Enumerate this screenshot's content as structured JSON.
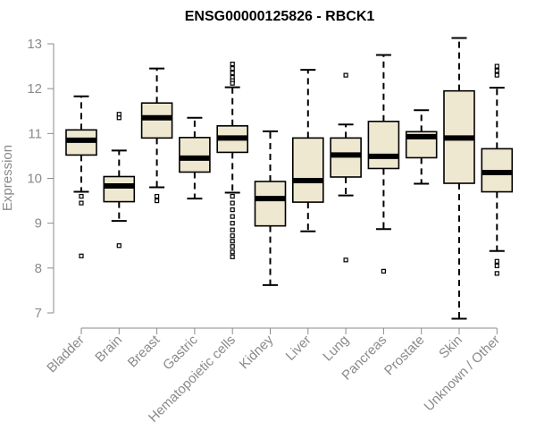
{
  "chart_data": {
    "type": "boxplot",
    "title": "ENSG00000125826 - RBCK1",
    "xlabel": "",
    "ylabel": "Expression",
    "ylim": [
      6.8,
      13.2
    ],
    "yticks": [
      7,
      8,
      9,
      10,
      11,
      12,
      13
    ],
    "categories": [
      "Bladder",
      "Brain",
      "Breast",
      "Gastric",
      "Hematopoietic cells",
      "Kidney",
      "Liver",
      "Lung",
      "Pancreas",
      "Prostate",
      "Skin",
      "Unknown / Other"
    ],
    "boxes": [
      {
        "category": "Bladder",
        "whisker_low": 9.7,
        "q1": 10.52,
        "median": 10.85,
        "q3": 11.08,
        "whisker_high": 11.83,
        "outliers": [
          9.6,
          9.45,
          8.27
        ]
      },
      {
        "category": "Brain",
        "whisker_low": 9.05,
        "q1": 9.48,
        "median": 9.83,
        "q3": 10.04,
        "whisker_high": 10.62,
        "outliers": [
          11.43,
          11.35,
          8.5
        ]
      },
      {
        "category": "Breast",
        "whisker_low": 9.8,
        "q1": 10.9,
        "median": 11.35,
        "q3": 11.68,
        "whisker_high": 12.45,
        "outliers": [
          9.6,
          9.5
        ]
      },
      {
        "category": "Gastric",
        "whisker_low": 9.55,
        "q1": 10.14,
        "median": 10.45,
        "q3": 10.91,
        "whisker_high": 11.35,
        "outliers": []
      },
      {
        "category": "Hematopoietic cells",
        "whisker_low": 9.68,
        "q1": 10.58,
        "median": 10.9,
        "q3": 11.17,
        "whisker_high": 12.03,
        "outliers": [
          12.55,
          12.45,
          12.35,
          12.25,
          12.18,
          12.12,
          9.6,
          9.45,
          9.3,
          9.15,
          9.0,
          8.85,
          8.72,
          8.6,
          8.48,
          8.36,
          8.25
        ]
      },
      {
        "category": "Kidney",
        "whisker_low": 7.62,
        "q1": 8.94,
        "median": 9.55,
        "q3": 9.93,
        "whisker_high": 11.05,
        "outliers": []
      },
      {
        "category": "Liver",
        "whisker_low": 8.82,
        "q1": 9.47,
        "median": 9.95,
        "q3": 10.9,
        "whisker_high": 12.42,
        "outliers": []
      },
      {
        "category": "Lung",
        "whisker_low": 9.62,
        "q1": 10.03,
        "median": 10.52,
        "q3": 10.9,
        "whisker_high": 11.2,
        "outliers": [
          12.3,
          8.18
        ]
      },
      {
        "category": "Pancreas",
        "whisker_low": 8.87,
        "q1": 10.22,
        "median": 10.49,
        "q3": 11.27,
        "whisker_high": 12.75,
        "outliers": [
          7.93
        ]
      },
      {
        "category": "Prostate",
        "whisker_low": 9.88,
        "q1": 10.46,
        "median": 10.93,
        "q3": 11.04,
        "whisker_high": 11.52,
        "outliers": []
      },
      {
        "category": "Skin",
        "whisker_low": 6.87,
        "q1": 9.89,
        "median": 10.9,
        "q3": 11.95,
        "whisker_high": 13.13,
        "outliers": []
      },
      {
        "category": "Unknown / Other",
        "whisker_low": 8.38,
        "q1": 9.7,
        "median": 10.13,
        "q3": 10.66,
        "whisker_high": 12.02,
        "outliers": [
          12.5,
          12.4,
          12.3,
          8.15,
          8.05,
          7.88
        ]
      }
    ],
    "colors": {
      "box_fill": "#efe8d0",
      "box_stroke": "#000000",
      "axis": "#8a8a8a",
      "median": "#000000"
    },
    "grid": false,
    "legend": "none"
  }
}
